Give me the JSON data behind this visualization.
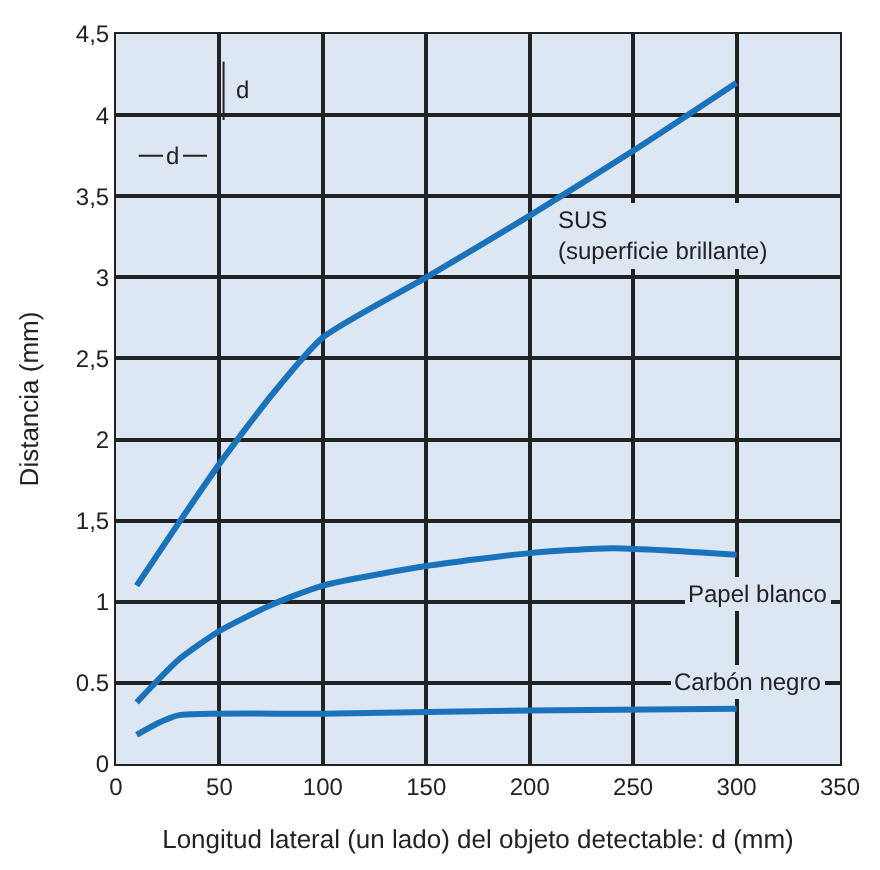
{
  "chart_data": {
    "type": "line",
    "xlabel": "Longitud lateral (un lado) del objeto detectable: d (mm)",
    "ylabel": "Distancia (mm)",
    "xlim": [
      0,
      350
    ],
    "xticks": [
      0,
      50,
      100,
      150,
      200,
      250,
      300,
      350
    ],
    "ylim": [
      0,
      4.5
    ],
    "yticks": [
      0,
      0.5,
      1,
      {
        "value": 1.5,
        "label": "1,5"
      },
      2,
      {
        "value": 2.5,
        "label": "2,5"
      },
      3,
      {
        "value": 3.5,
        "label": "3,5"
      },
      4,
      {
        "value": 4.5,
        "label": "4,5"
      }
    ],
    "grid": true,
    "legend": false,
    "annotations": [
      "d",
      "d"
    ],
    "series": [
      {
        "name": "SUS\n(superficie brillante)",
        "color": "#1a72bb",
        "x": [
          10,
          30,
          50,
          75,
          100,
          150,
          200,
          250,
          300
        ],
        "values": [
          1.1,
          1.48,
          1.85,
          2.27,
          2.63,
          3.0,
          3.38,
          3.78,
          4.2
        ]
      },
      {
        "name": "Papel blanco",
        "color": "#1a72bb",
        "x": [
          10,
          30,
          50,
          75,
          100,
          150,
          200,
          240,
          300
        ],
        "values": [
          0.38,
          0.64,
          0.82,
          0.98,
          1.1,
          1.22,
          1.3,
          1.33,
          1.29
        ]
      },
      {
        "name": "Carbón negro",
        "color": "#1a72bb",
        "x": [
          10,
          20,
          30,
          100,
          200,
          300
        ],
        "values": [
          0.18,
          0.25,
          0.3,
          0.31,
          0.33,
          0.34
        ]
      }
    ]
  }
}
